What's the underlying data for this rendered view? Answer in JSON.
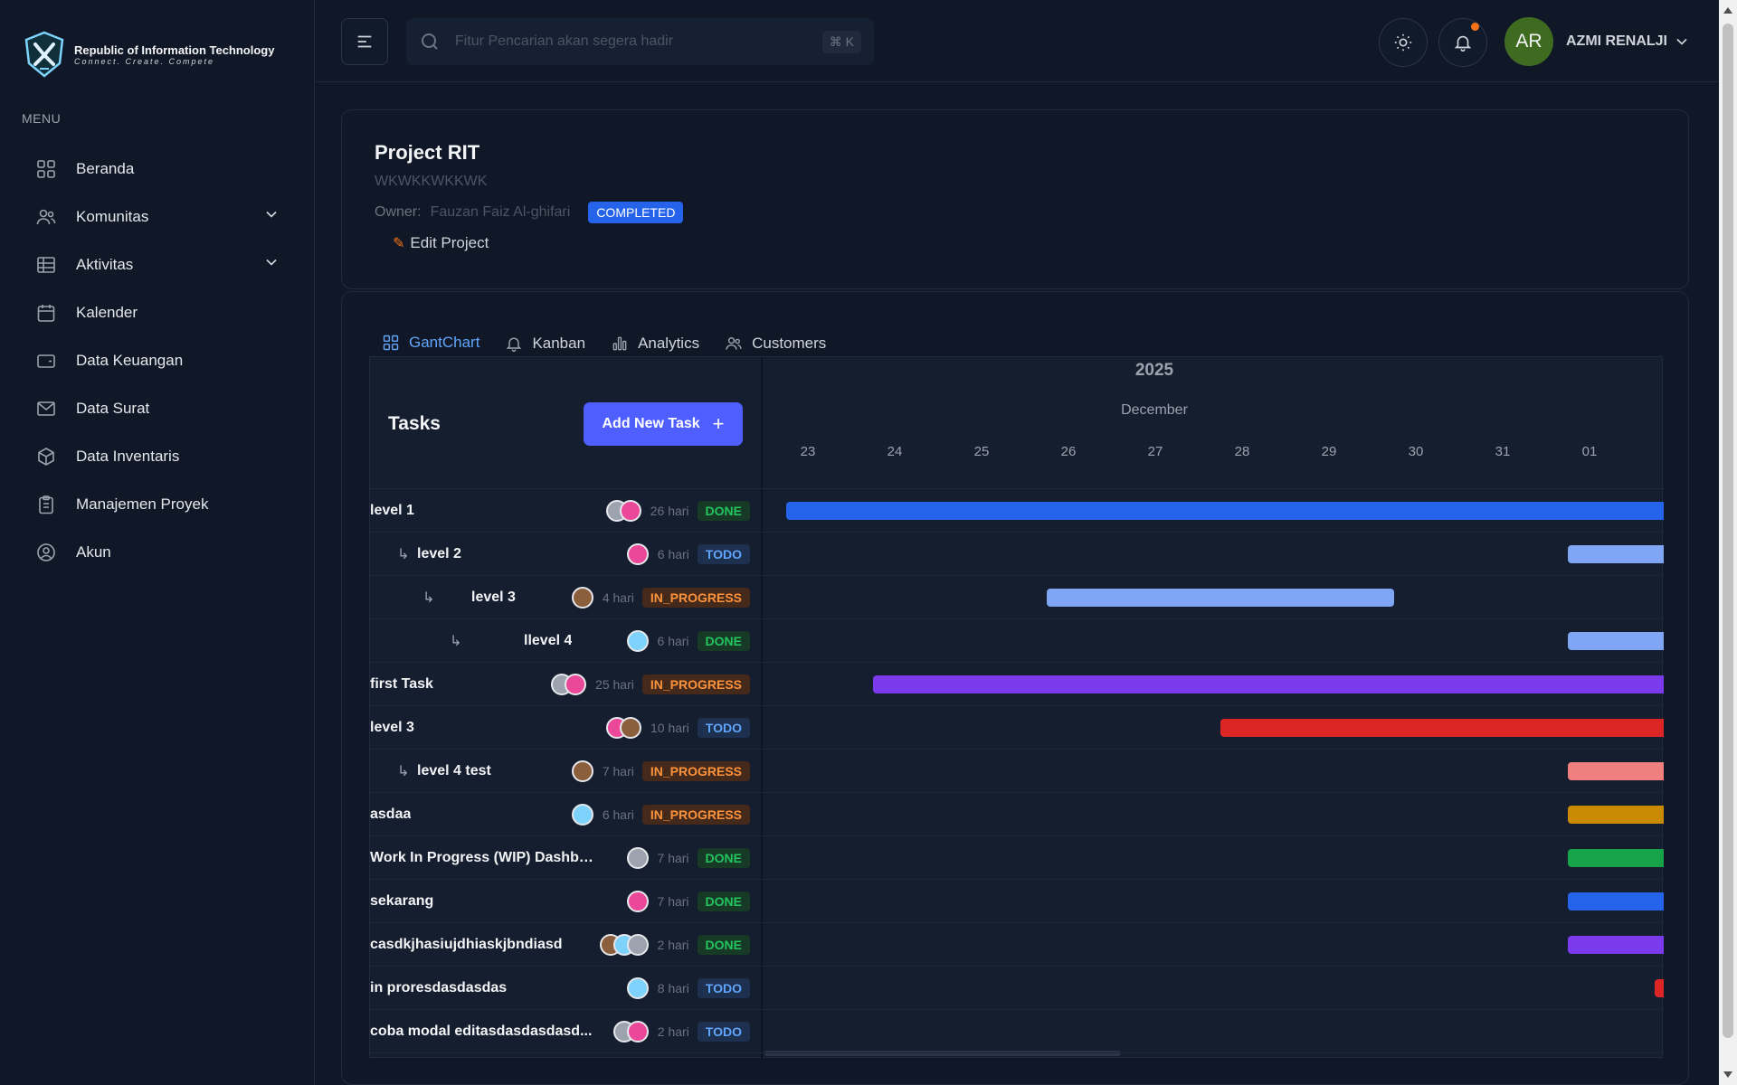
{
  "brand": {
    "title": "Republic of Information Technology",
    "tagline": "Connect. Create. Compete"
  },
  "sidebar": {
    "menu_label": "MENU",
    "items": [
      {
        "label": "Beranda",
        "icon": "grid-icon",
        "has_chevron": false
      },
      {
        "label": "Komunitas",
        "icon": "users-icon",
        "has_chevron": true
      },
      {
        "label": "Aktivitas",
        "icon": "table-icon",
        "has_chevron": true
      },
      {
        "label": "Kalender",
        "icon": "calendar-icon",
        "has_chevron": false
      },
      {
        "label": "Data Keuangan",
        "icon": "wallet-icon",
        "has_chevron": false
      },
      {
        "label": "Data Surat",
        "icon": "mail-icon",
        "has_chevron": false
      },
      {
        "label": "Data Inventaris",
        "icon": "box-icon",
        "has_chevron": false
      },
      {
        "label": "Manajemen Proyek",
        "icon": "clipboard-icon",
        "has_chevron": false
      },
      {
        "label": "Akun",
        "icon": "user-circle-icon",
        "has_chevron": false
      }
    ]
  },
  "topbar": {
    "search_placeholder": "Fitur Pencarian akan segera hadir",
    "search_shortcut": "⌘ K",
    "avatar_initials": "AR",
    "username": "AZMI RENALJI"
  },
  "project": {
    "title": "Project RIT",
    "subtitle": "WKWKKWKKWK",
    "owner_label": "Owner:",
    "owner_name": "Fauzan Faiz Al-ghifari",
    "status": "COMPLETED",
    "edit_label": "Edit Project"
  },
  "tabs": [
    {
      "label": "GantChart",
      "icon": "grid-icon",
      "active": true
    },
    {
      "label": "Kanban",
      "icon": "bell-icon",
      "active": false
    },
    {
      "label": "Analytics",
      "icon": "bar-chart-icon",
      "active": false
    },
    {
      "label": "Customers",
      "icon": "users-icon",
      "active": false
    }
  ],
  "gantt": {
    "tasks_title": "Tasks",
    "add_button": "Add New Task",
    "year": "2025",
    "month": "December",
    "days": [
      "23",
      "24",
      "25",
      "26",
      "27",
      "28",
      "29",
      "30",
      "31",
      "01"
    ],
    "tasks": [
      {
        "name": "level 1",
        "level": 0,
        "avatars": 2,
        "duration": "26 hari",
        "status": "DONE",
        "bar_start_day": 22.75,
        "bar_end_day": 34,
        "color": "#2563eb"
      },
      {
        "name": "level 2",
        "level": 1,
        "avatars": 1,
        "duration": "6 hari",
        "status": "TODO",
        "bar_start_day": 31.75,
        "bar_end_day": 34,
        "color": "#7ea6f4"
      },
      {
        "name": "level 3",
        "level": 2,
        "avatars": 1,
        "duration": "4 hari",
        "status": "IN_PROGRESS",
        "bar_start_day": 25.75,
        "bar_end_day": 29.75,
        "color": "#7ea6f4"
      },
      {
        "name": "llevel 4",
        "level": 3,
        "avatars": 1,
        "duration": "6 hari",
        "status": "DONE",
        "bar_start_day": 31.75,
        "bar_end_day": 34,
        "color": "#7ea6f4"
      },
      {
        "name": "first Task",
        "level": 0,
        "avatars": 2,
        "duration": "25 hari",
        "status": "IN_PROGRESS",
        "bar_start_day": 23.75,
        "bar_end_day": 34,
        "color": "#7c3aed"
      },
      {
        "name": "level 3",
        "level": 0,
        "avatars": 2,
        "duration": "10 hari",
        "status": "TODO",
        "bar_start_day": 27.75,
        "bar_end_day": 34,
        "color": "#dc2626"
      },
      {
        "name": "level 4 test",
        "level": 1,
        "avatars": 1,
        "duration": "7 hari",
        "status": "IN_PROGRESS",
        "bar_start_day": 31.75,
        "bar_end_day": 34,
        "color": "#f08080"
      },
      {
        "name": "asdaa",
        "level": 0,
        "avatars": 1,
        "duration": "6 hari",
        "status": "IN_PROGRESS",
        "bar_start_day": 31.75,
        "bar_end_day": 34,
        "color": "#ca8a04"
      },
      {
        "name": "Work In Progress (WIP) Dashboard",
        "level": 0,
        "avatars": 1,
        "duration": "7 hari",
        "status": "DONE",
        "bar_start_day": 31.75,
        "bar_end_day": 34,
        "color": "#16a34a"
      },
      {
        "name": "sekarang",
        "level": 0,
        "avatars": 1,
        "duration": "7 hari",
        "status": "DONE",
        "bar_start_day": 31.75,
        "bar_end_day": 34,
        "color": "#2563eb"
      },
      {
        "name": "casdkjhasiujdhiaskjbndiasd",
        "level": 0,
        "avatars": 3,
        "duration": "2 hari",
        "status": "DONE",
        "bar_start_day": 31.75,
        "bar_end_day": 34,
        "color": "#7c3aed"
      },
      {
        "name": "in proresdasdasdas",
        "level": 0,
        "avatars": 1,
        "duration": "8 hari",
        "status": "TODO",
        "bar_start_day": 32.75,
        "bar_end_day": 34,
        "color": "#dc2626"
      },
      {
        "name": "coba modal editasdasdasdasd...",
        "level": 0,
        "avatars": 2,
        "duration": "2 hari",
        "status": "TODO",
        "bar_start_day": null,
        "bar_end_day": null,
        "color": null
      }
    ]
  }
}
